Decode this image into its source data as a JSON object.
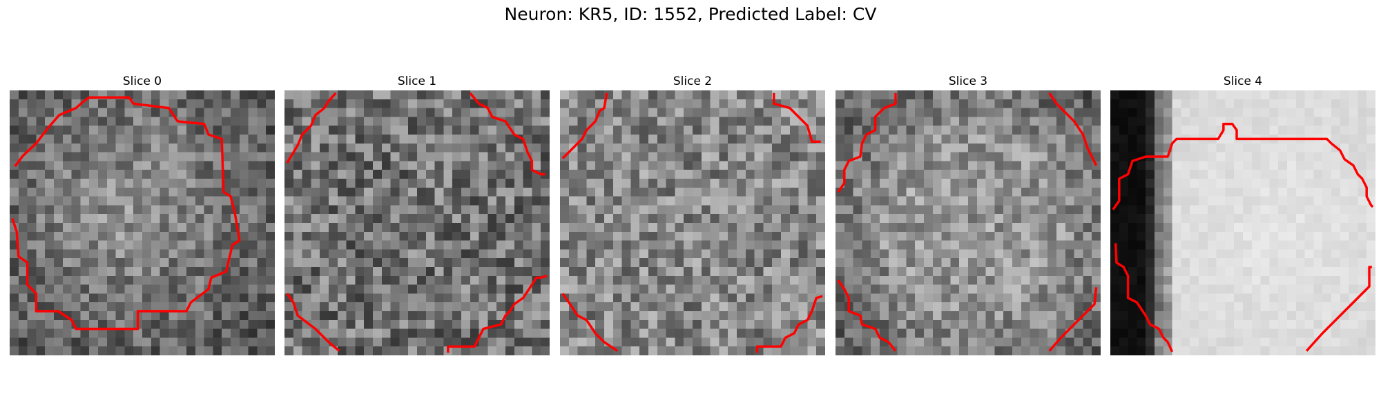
{
  "figure": {
    "title": "Neuron: KR5, ID: 1552, Predicted Label: CV",
    "contour_color": "#ff0000"
  },
  "slices": [
    {
      "title": "Slice 0"
    },
    {
      "title": "Slice 1"
    },
    {
      "title": "Slice 2"
    },
    {
      "title": "Slice 3"
    },
    {
      "title": "Slice 4"
    }
  ]
}
